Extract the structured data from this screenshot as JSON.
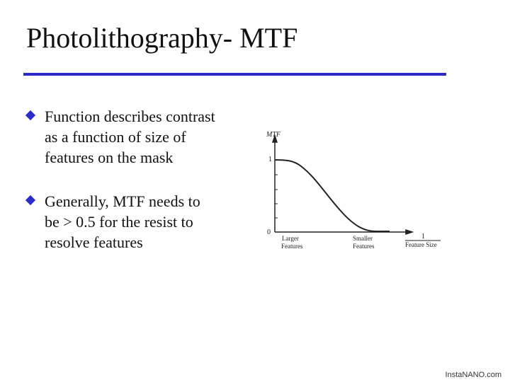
{
  "title": "Photolithography- MTF",
  "bullets": [
    "Function describes contrast as a function of size of features on the mask",
    "Generally, MTF needs to be > 0.5 for the resist to resolve features"
  ],
  "figure": {
    "y_label": "MTF",
    "y_tick_top": "1",
    "y_tick_bottom": "0",
    "left_label": [
      "Larger",
      "Features"
    ],
    "right_label": [
      "Smaller",
      "Features"
    ],
    "x_label_numerator": "1",
    "x_label_denominator": "Feature Size"
  },
  "footer": "InstaNANO.com"
}
